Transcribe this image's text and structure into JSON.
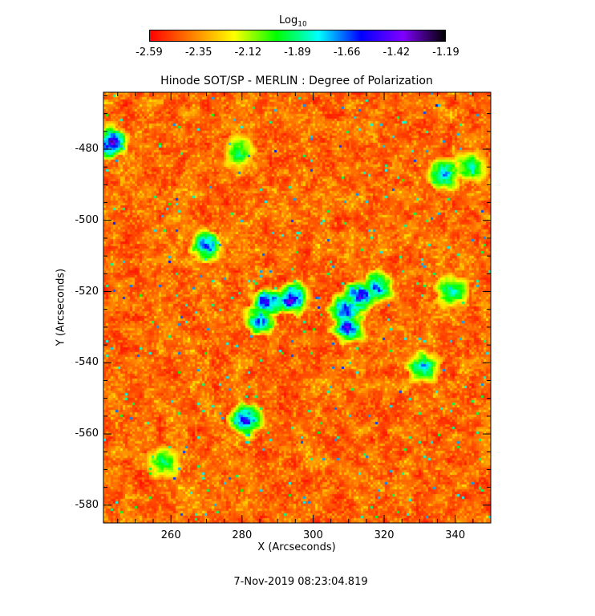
{
  "chart_data": {
    "type": "heatmap",
    "title": "Hinode SOT/SP - MERLIN : Degree of Polarization",
    "colorbar": {
      "label_main": "Log",
      "label_sub": "10",
      "ticks": [
        "-2.59",
        "-2.35",
        "-2.12",
        "-1.89",
        "-1.66",
        "-1.42",
        "-1.19"
      ],
      "range": [
        -2.59,
        -1.19
      ],
      "colormap": "rainbow",
      "colors": [
        "#ff0000",
        "#ff8000",
        "#ffff00",
        "#00ff00",
        "#00ffff",
        "#0000ff",
        "#8000ff",
        "#000000"
      ]
    },
    "xlabel": "X (Arcseconds)",
    "ylabel": "Y (Arcseconds)",
    "xlim": [
      241,
      350
    ],
    "ylim": [
      -585,
      -464
    ],
    "xticks": [
      "260",
      "280",
      "300",
      "320",
      "340"
    ],
    "yticks": [
      "-480",
      "-500",
      "-520",
      "-540",
      "-560",
      "-580"
    ],
    "footer": "7-Nov-2019 08:23:04.819",
    "strong_regions": [
      {
        "x": 243,
        "y": -478,
        "level": -1.3
      },
      {
        "x": 287,
        "y": -523,
        "level": -1.4
      },
      {
        "x": 294,
        "y": -522,
        "level": -1.35
      },
      {
        "x": 285,
        "y": -528,
        "level": -1.55
      },
      {
        "x": 309,
        "y": -525,
        "level": -1.42
      },
      {
        "x": 313,
        "y": -521,
        "level": -1.4
      },
      {
        "x": 318,
        "y": -519,
        "level": -1.55
      },
      {
        "x": 310,
        "y": -530,
        "level": -1.45
      },
      {
        "x": 270,
        "y": -507,
        "level": -1.5
      },
      {
        "x": 281,
        "y": -556,
        "level": -1.45
      },
      {
        "x": 331,
        "y": -541,
        "level": -1.65
      },
      {
        "x": 337,
        "y": -487,
        "level": -1.6
      },
      {
        "x": 344,
        "y": -485,
        "level": -1.75
      },
      {
        "x": 339,
        "y": -520,
        "level": -1.7
      },
      {
        "x": 279,
        "y": -481,
        "level": -1.85
      },
      {
        "x": 258,
        "y": -568,
        "level": -1.85
      }
    ]
  }
}
